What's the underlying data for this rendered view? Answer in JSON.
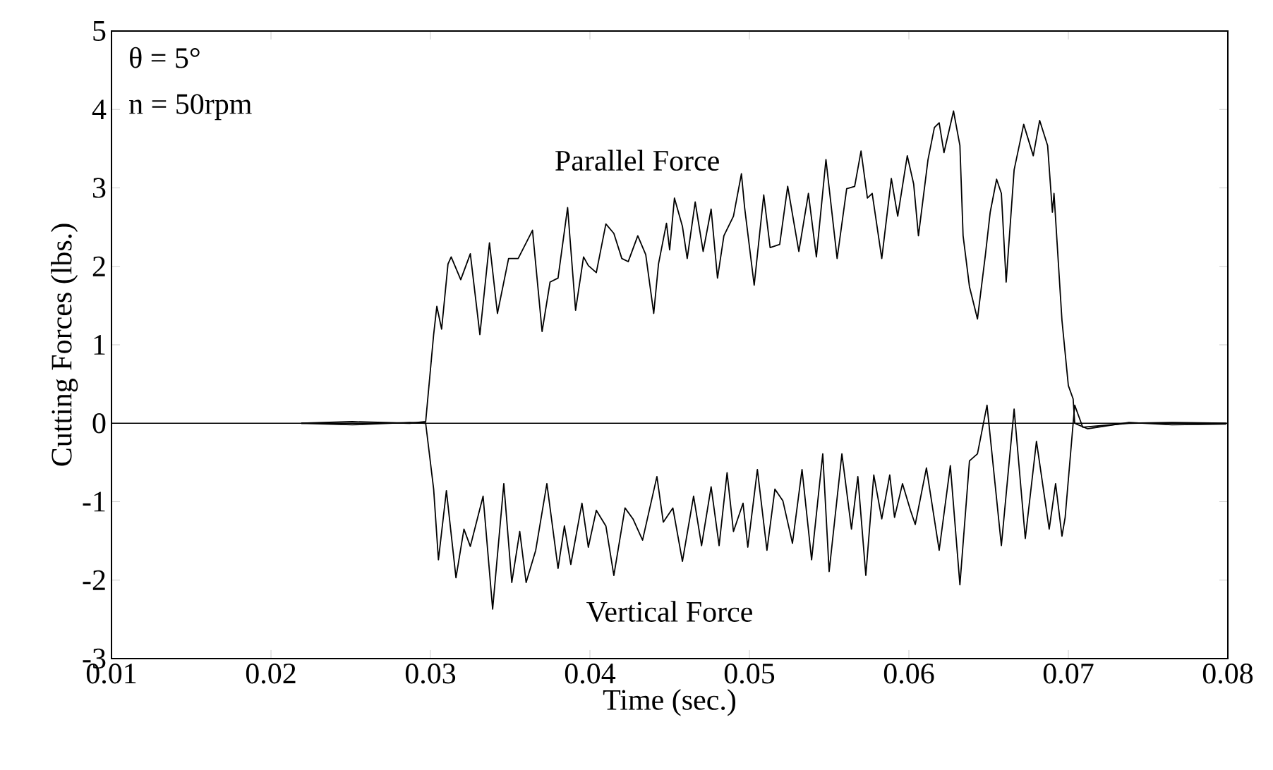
{
  "chart_data": {
    "type": "line",
    "xlabel": "Time (sec.)",
    "ylabel": "Cutting Forces (lbs.)",
    "annotations": [
      "θ = 5°",
      "n = 50rpm"
    ],
    "xlim": [
      0.01,
      0.08
    ],
    "xticks": [
      0.01,
      0.02,
      0.03,
      0.04,
      0.05,
      0.06,
      0.07,
      0.08
    ],
    "ylim": [
      -3,
      5
    ],
    "yticks": [
      -3,
      -2,
      -1,
      0,
      1,
      2,
      3,
      4,
      5
    ],
    "grid": false,
    "legend": false,
    "marker": "none",
    "line_style": "solid",
    "ref_lines": [
      {
        "axis": "y",
        "value": 0,
        "color": "#000000"
      }
    ],
    "series": [
      {
        "name": "Parallel Force",
        "color": "#000000",
        "x": [
          0.0219,
          0.0251,
          0.0287,
          0.0297,
          0.0302,
          0.0304,
          0.0307,
          0.0311,
          0.0313,
          0.0319,
          0.0325,
          0.0331,
          0.0337,
          0.0342,
          0.0349,
          0.0355,
          0.0364,
          0.037,
          0.0375,
          0.038,
          0.0386,
          0.0391,
          0.0396,
          0.0399,
          0.0404,
          0.041,
          0.0415,
          0.042,
          0.0424,
          0.043,
          0.0435,
          0.044,
          0.0443,
          0.0448,
          0.045,
          0.0453,
          0.0458,
          0.0461,
          0.0466,
          0.0471,
          0.0476,
          0.048,
          0.0484,
          0.049,
          0.0495,
          0.0497,
          0.0503,
          0.0509,
          0.0513,
          0.0519,
          0.0524,
          0.0531,
          0.0537,
          0.0542,
          0.0548,
          0.0555,
          0.0561,
          0.0566,
          0.057,
          0.0574,
          0.0577,
          0.0583,
          0.0589,
          0.0593,
          0.0599,
          0.0603,
          0.0606,
          0.0612,
          0.0616,
          0.0619,
          0.0622,
          0.0628,
          0.0632,
          0.0634,
          0.0638,
          0.0643,
          0.0648,
          0.0651,
          0.0655,
          0.0658,
          0.0661,
          0.0666,
          0.0672,
          0.0678,
          0.0682,
          0.0687,
          0.069,
          0.0691,
          0.0696,
          0.07,
          0.0703,
          0.0704,
          0.0712,
          0.0738,
          0.0765,
          0.0799
        ],
        "values": [
          0,
          0.02,
          0,
          0.02,
          1.13,
          1.49,
          1.2,
          2.03,
          2.12,
          1.83,
          2.16,
          1.13,
          2.3,
          1.4,
          2.1,
          2.1,
          2.46,
          1.17,
          1.8,
          1.85,
          2.75,
          1.44,
          2.12,
          2.01,
          1.92,
          2.54,
          2.42,
          2.1,
          2.06,
          2.39,
          2.15,
          1.4,
          2.03,
          2.55,
          2.21,
          2.87,
          2.51,
          2.1,
          2.82,
          2.19,
          2.73,
          1.85,
          2.39,
          2.64,
          3.18,
          2.75,
          1.76,
          2.91,
          2.24,
          2.28,
          3.02,
          2.19,
          2.93,
          2.12,
          3.36,
          2.1,
          2.99,
          3.02,
          3.47,
          2.87,
          2.93,
          2.1,
          3.12,
          2.64,
          3.41,
          3.05,
          2.39,
          3.36,
          3.77,
          3.83,
          3.45,
          3.98,
          3.54,
          2.39,
          1.74,
          1.33,
          2.15,
          2.69,
          3.11,
          2.93,
          1.8,
          3.23,
          3.81,
          3.41,
          3.86,
          3.54,
          2.69,
          2.93,
          1.31,
          0.48,
          0.31,
          0,
          -0.07,
          0.01,
          -0.02,
          -0.01
        ]
      },
      {
        "name": "Vertical Force",
        "color": "#000000",
        "x": [
          0.0219,
          0.0251,
          0.0287,
          0.0297,
          0.0302,
          0.0305,
          0.031,
          0.0316,
          0.0321,
          0.0325,
          0.0333,
          0.0339,
          0.0346,
          0.0351,
          0.0356,
          0.036,
          0.0366,
          0.0373,
          0.038,
          0.0384,
          0.0388,
          0.0395,
          0.0399,
          0.0404,
          0.041,
          0.0415,
          0.0422,
          0.0427,
          0.0433,
          0.0442,
          0.0446,
          0.0452,
          0.0458,
          0.0465,
          0.047,
          0.0476,
          0.0481,
          0.0486,
          0.049,
          0.0496,
          0.0499,
          0.0505,
          0.0511,
          0.0516,
          0.0521,
          0.0527,
          0.0533,
          0.0539,
          0.0546,
          0.055,
          0.0558,
          0.0564,
          0.0568,
          0.0573,
          0.0578,
          0.0583,
          0.0588,
          0.0591,
          0.0596,
          0.0601,
          0.0604,
          0.0611,
          0.0619,
          0.0626,
          0.0632,
          0.0638,
          0.0643,
          0.0649,
          0.0658,
          0.0666,
          0.0673,
          0.068,
          0.0688,
          0.0692,
          0.0696,
          0.0698,
          0.0703,
          0.0704,
          0.0709,
          0.0738,
          0.0765,
          0.0799
        ],
        "values": [
          0,
          -0.02,
          0.01,
          0,
          -0.84,
          -1.74,
          -0.86,
          -1.97,
          -1.35,
          -1.57,
          -0.93,
          -2.37,
          -0.77,
          -2.03,
          -1.38,
          -2.03,
          -1.62,
          -0.77,
          -1.85,
          -1.31,
          -1.8,
          -1.02,
          -1.58,
          -1.11,
          -1.31,
          -1.94,
          -1.08,
          -1.22,
          -1.49,
          -0.68,
          -1.26,
          -1.08,
          -1.76,
          -0.93,
          -1.56,
          -0.81,
          -1.56,
          -0.63,
          -1.38,
          -1.02,
          -1.58,
          -0.59,
          -1.62,
          -0.84,
          -0.99,
          -1.53,
          -0.59,
          -1.74,
          -0.39,
          -1.89,
          -0.39,
          -1.35,
          -0.68,
          -1.94,
          -0.66,
          -1.22,
          -0.66,
          -1.2,
          -0.77,
          -1.11,
          -1.29,
          -0.57,
          -1.62,
          -0.54,
          -2.06,
          -0.48,
          -0.39,
          0.23,
          -1.56,
          0.18,
          -1.47,
          -0.23,
          -1.35,
          -0.77,
          -1.44,
          -1.2,
          0,
          0.23,
          -0.05,
          0,
          0.01,
          0
        ]
      }
    ]
  }
}
